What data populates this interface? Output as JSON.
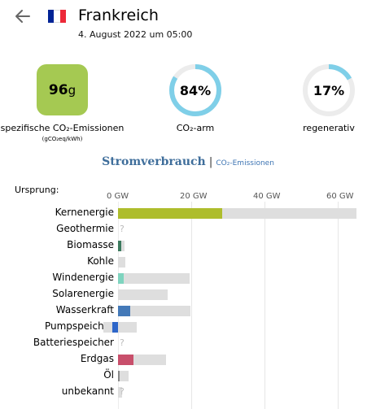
{
  "header": {
    "country": "Frankreich",
    "date": "4. August 2022 um 05:00",
    "back_icon": "arrow-left-icon",
    "flag_colors": [
      "#002395",
      "#ffffff",
      "#ed2939"
    ]
  },
  "summary": {
    "emissions": {
      "value": "96",
      "unit": "g",
      "label": "spezifische CO₂-Emissionen",
      "sublabel": "(gCO₂eq/kWh)",
      "color": "#a5c952"
    },
    "low_carbon": {
      "value": "84%",
      "label": "CO₂-arm",
      "fraction": 0.84
    },
    "renewable": {
      "value": "17%",
      "label": "regenerativ",
      "fraction": 0.17
    },
    "ring_color": "#7fcfe8",
    "ring_track": "#ececec"
  },
  "tabs": {
    "active": "Stromverbrauch",
    "separator": "|",
    "inactive": "CO₂-Emissionen"
  },
  "chart_data": {
    "type": "bar",
    "xlabel": "Ursprung:",
    "ticks": [
      "0 GW",
      "20 GW",
      "40 GW",
      "60 GW"
    ],
    "tick_values": [
      0,
      20,
      40,
      60
    ],
    "categories": [
      "Kernenergie",
      "Geothermie",
      "Biomasse",
      "Kohle",
      "Windenergie",
      "Solarenergie",
      "Wasserkraft",
      "Pumpspeicher",
      "Batteriespeicher",
      "Erdgas",
      "Öl",
      "unbekannt"
    ],
    "series": [
      {
        "name": "",
        "role": "production",
        "values": [
          28.5,
          null,
          0.8,
          0,
          1.5,
          0,
          3.3,
          -1.6,
          null,
          4.2,
          0.3,
          0
        ]
      },
      {
        "name": "",
        "role": "capacity",
        "values": [
          65,
          null,
          1.8,
          2.1,
          19.5,
          13.6,
          19.8,
          5.2,
          null,
          13.0,
          2.9,
          1.2
        ]
      }
    ],
    "negative_capacity": [
      0,
      0,
      0,
      0,
      0,
      0,
      0,
      -3.9,
      0,
      0,
      0,
      0
    ],
    "missing_marker": "?",
    "colors": {
      "Kernenergie": "#aebd2c",
      "Biomasse": "#3c7a5e",
      "Windenergie": "#7fd4bf",
      "Wasserkraft": "#4479b8",
      "Pumpspeicher": "#2e66c9",
      "Erdgas": "#c84f6b",
      "Öl": "#888888",
      "capacity": "#dedede"
    },
    "xlim": [
      -5,
      65
    ]
  }
}
